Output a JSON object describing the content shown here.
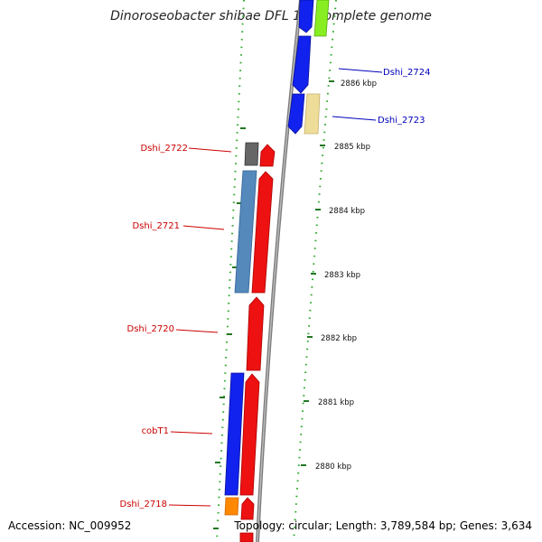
{
  "title": "Dinoroseobacter shibae DFL 12, complete genome",
  "footer": {
    "accession": "Accession: NC_009952",
    "summary": "Topology: circular; Length: 3,789,584 bp; Genes: 3,634"
  },
  "colors": {
    "forward_gene": "#ee1111",
    "reverse_gene": "#1122ee",
    "left_label": "#cc0000",
    "right_label": "#0000bb",
    "scale_dots": "#229922",
    "backbone": "#888888"
  },
  "position_labels": [
    "2886 kbp",
    "2885 kbp",
    "2884 kbp",
    "2883 kbp",
    "2882 kbp",
    "2881 kbp",
    "2880 kbp"
  ],
  "gene_labels_left": [
    "Dshi_2722",
    "Dshi_2721",
    "Dshi_2720",
    "cobT1",
    "Dshi_2718"
  ],
  "gene_labels_right": [
    "Dshi_2724",
    "Dshi_2723"
  ]
}
